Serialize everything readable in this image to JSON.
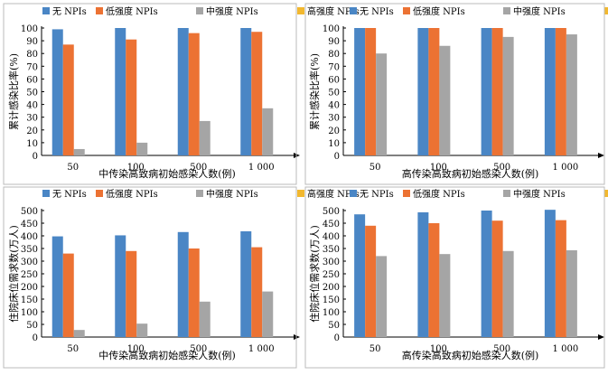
{
  "legend": [
    {
      "label": "无 NPIs",
      "color": "#4a86c5"
    },
    {
      "label": "低强度 NPIs",
      "color": "#ec7233"
    },
    {
      "label": "中强度 NPIs",
      "color": "#a5a5a5"
    },
    {
      "label": "高强度 NPIs",
      "color": "#f2b82f"
    }
  ],
  "chart_data": [
    {
      "type": "bar",
      "categories": [
        "50",
        "100",
        "500",
        "1 000"
      ],
      "xlabel": "中传染高致病初始感染人数(例)",
      "ylabel": "累计感染比率(%)",
      "ylim": [
        0,
        100
      ],
      "yticks": [
        0,
        10,
        20,
        30,
        40,
        50,
        60,
        70,
        80,
        90,
        100
      ],
      "series": [
        {
          "name": "无 NPIs",
          "values": [
            99,
            100,
            100,
            100
          ]
        },
        {
          "name": "低强度 NPIs",
          "values": [
            87,
            91,
            96,
            97
          ]
        },
        {
          "name": "中强度 NPIs",
          "values": [
            5,
            10,
            27,
            37
          ]
        },
        {
          "name": "高强度 NPIs",
          "values": [
            0,
            0,
            0,
            0
          ]
        }
      ]
    },
    {
      "type": "bar",
      "categories": [
        "50",
        "100",
        "500",
        "1 000"
      ],
      "xlabel": "高传染高致病初始感染人数(例)",
      "ylabel": "累计感染比率(%)",
      "ylim": [
        0,
        100
      ],
      "yticks": [
        0,
        10,
        20,
        30,
        40,
        50,
        60,
        70,
        80,
        90,
        100
      ],
      "series": [
        {
          "name": "无 NPIs",
          "values": [
            100,
            100,
            100,
            100
          ]
        },
        {
          "name": "低强度 NPIs",
          "values": [
            100,
            100,
            100,
            100
          ]
        },
        {
          "name": "中强度 NPIs",
          "values": [
            80,
            86,
            93,
            95
          ]
        },
        {
          "name": "高强度 NPIs",
          "values": [
            0,
            0,
            0,
            0
          ]
        }
      ]
    },
    {
      "type": "bar",
      "categories": [
        "50",
        "100",
        "500",
        "1 000"
      ],
      "xlabel": "中传染高致病初始感染人数(例)",
      "ylabel": "住院床位需求数(万人)",
      "ylim": [
        0,
        500
      ],
      "yticks": [
        0,
        50,
        100,
        150,
        200,
        250,
        300,
        350,
        400,
        450,
        500
      ],
      "series": [
        {
          "name": "无 NPIs",
          "values": [
            398,
            402,
            415,
            418
          ]
        },
        {
          "name": "低强度 NPIs",
          "values": [
            330,
            340,
            350,
            355
          ]
        },
        {
          "name": "中强度 NPIs",
          "values": [
            28,
            53,
            140,
            180
          ]
        },
        {
          "name": "高强度 NPIs",
          "values": [
            0,
            0,
            0,
            0
          ]
        }
      ]
    },
    {
      "type": "bar",
      "categories": [
        "50",
        "100",
        "500",
        "1 000"
      ],
      "xlabel": "高传染高致病初始感染人数(例)",
      "ylabel": "住院床位需求数(万人)",
      "ylim": [
        0,
        500
      ],
      "yticks": [
        0,
        50,
        100,
        150,
        200,
        250,
        300,
        350,
        400,
        450,
        500
      ],
      "series": [
        {
          "name": "无 NPIs",
          "values": [
            485,
            493,
            500,
            503
          ]
        },
        {
          "name": "低强度 NPIs",
          "values": [
            440,
            450,
            460,
            462
          ]
        },
        {
          "name": "中强度 NPIs",
          "values": [
            320,
            328,
            340,
            343
          ]
        },
        {
          "name": "高强度 NPIs",
          "values": [
            0,
            0,
            0,
            0
          ]
        }
      ]
    }
  ]
}
